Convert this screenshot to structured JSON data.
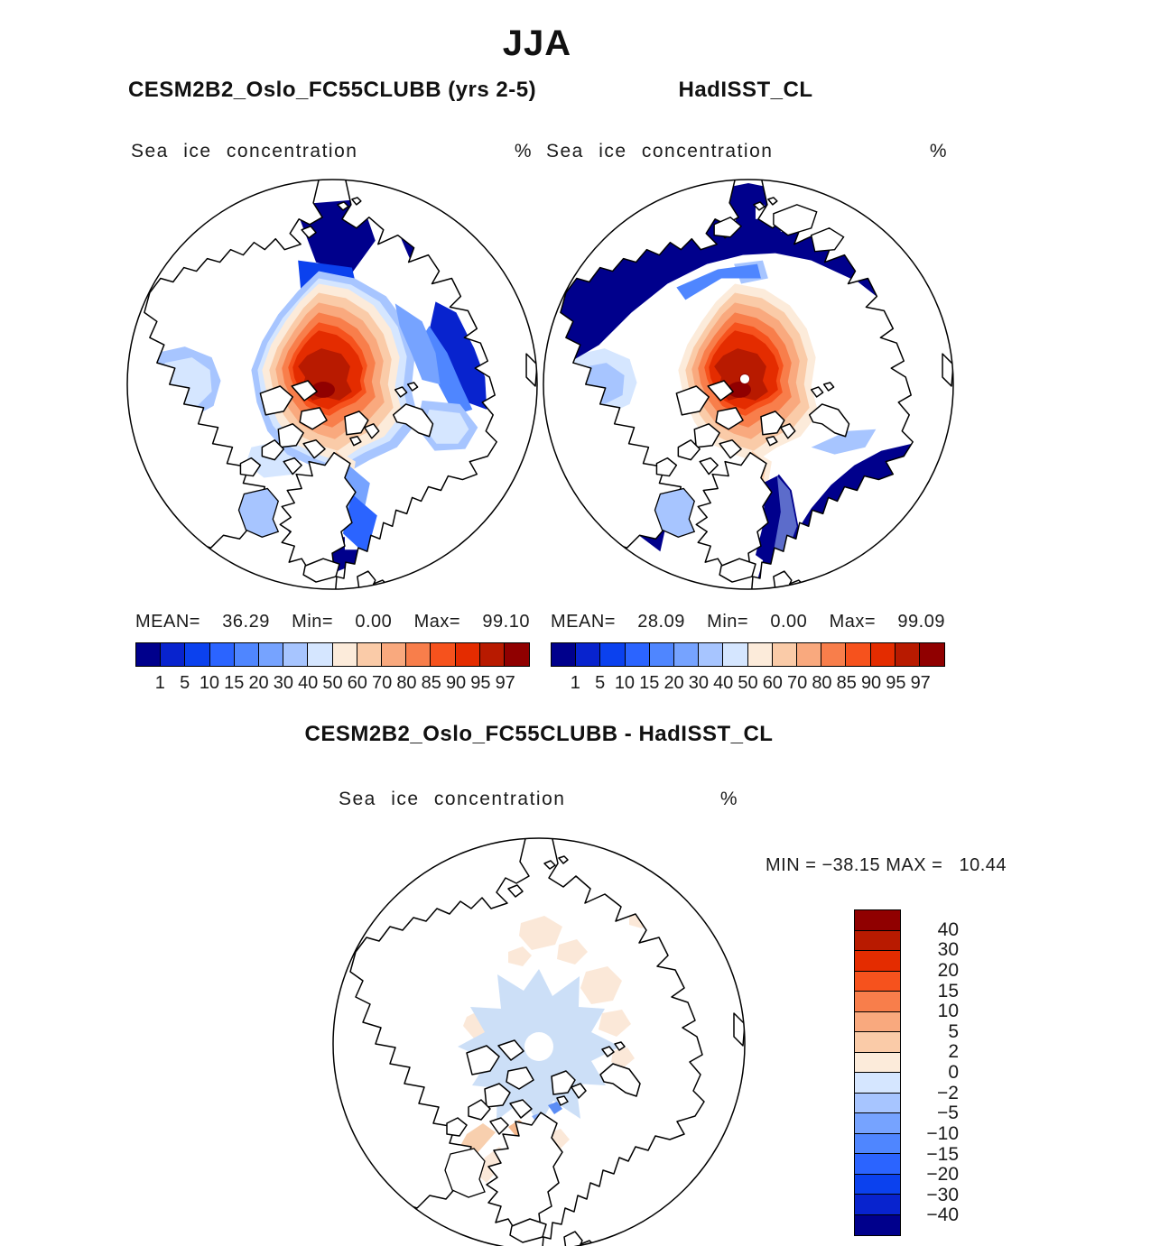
{
  "title": "JJA",
  "panels": {
    "model": {
      "subtitle": "CESM2B2_Oslo_FC55CLUBB (yrs 2-5)",
      "field_label": "Sea ice concentration",
      "units": "%",
      "stats": {
        "mean_label": "MEAN=",
        "mean": "36.29",
        "min_label": "Min=",
        "min": "0.00",
        "max_label": "Max=",
        "max": "99.10"
      }
    },
    "obs": {
      "subtitle": "HadISST_CL",
      "field_label": "Sea ice concentration",
      "units": "%",
      "stats": {
        "mean_label": "MEAN=",
        "mean": "28.09",
        "min_label": "Min=",
        "min": "0.00",
        "max_label": "Max=",
        "max": "99.09"
      }
    },
    "diff": {
      "title": "CESM2B2_Oslo_FC55CLUBB - HadISST_CL",
      "field_label": "Sea ice concentration",
      "units": "%",
      "minmax_line": "MIN = −38.15 MAX =   10.44"
    }
  },
  "colorbar": {
    "tick_labels": [
      "1",
      "5",
      "10",
      "15",
      "20",
      "30",
      "40",
      "50",
      "60",
      "70",
      "80",
      "85",
      "90",
      "95",
      "97"
    ],
    "colors": [
      "#00008C",
      "#0823CE",
      "#0B41EE",
      "#2B64FF",
      "#4F86FF",
      "#76A3FF",
      "#A7C5FF",
      "#D5E6FF",
      "#FCEBDA",
      "#FACBA8",
      "#F9A97E",
      "#F87E4B",
      "#F6521D",
      "#E42C00",
      "#B81A00",
      "#900000"
    ]
  },
  "diff_colorbar": {
    "labels": [
      "40",
      "30",
      "20",
      "15",
      "10",
      "5",
      "2",
      "0",
      "−2",
      "−5",
      "−10",
      "−15",
      "−20",
      "−30",
      "−40"
    ],
    "colors": [
      "#900000",
      "#B81A00",
      "#E42C00",
      "#F6521D",
      "#F87E4B",
      "#F9A97E",
      "#FACBA8",
      "#FCEBDA",
      "#D5E6FF",
      "#A7C5FF",
      "#76A3FF",
      "#4F86FF",
      "#2B64FF",
      "#0B41EE",
      "#0823CE",
      "#00008C"
    ]
  },
  "chart_data": [
    {
      "type": "heatmap",
      "title": "CESM2B2_Oslo_FC55CLUBB (yrs 2-5)",
      "season": "JJA",
      "variable": "Sea ice concentration",
      "units": "%",
      "projection": "north polar stereographic",
      "stats": {
        "mean": 36.29,
        "min": 0.0,
        "max": 99.1
      },
      "contour_levels": [
        1,
        5,
        10,
        15,
        20,
        30,
        40,
        50,
        60,
        70,
        80,
        85,
        90,
        95,
        97
      ],
      "palette": [
        "#00008C",
        "#0823CE",
        "#0B41EE",
        "#2B64FF",
        "#4F86FF",
        "#76A3FF",
        "#A7C5FF",
        "#D5E6FF",
        "#FCEBDA",
        "#FACBA8",
        "#F9A97E",
        "#F87E4B",
        "#F6521D",
        "#E42C00",
        "#B81A00",
        "#900000"
      ],
      "legend_position": "bottom"
    },
    {
      "type": "heatmap",
      "title": "HadISST_CL",
      "season": "JJA",
      "variable": "Sea ice concentration",
      "units": "%",
      "projection": "north polar stereographic",
      "stats": {
        "mean": 28.09,
        "min": 0.0,
        "max": 99.09
      },
      "contour_levels": [
        1,
        5,
        10,
        15,
        20,
        30,
        40,
        50,
        60,
        70,
        80,
        85,
        90,
        95,
        97
      ],
      "palette": [
        "#00008C",
        "#0823CE",
        "#0B41EE",
        "#2B64FF",
        "#4F86FF",
        "#76A3FF",
        "#A7C5FF",
        "#D5E6FF",
        "#FCEBDA",
        "#FACBA8",
        "#F9A97E",
        "#F87E4B",
        "#F6521D",
        "#E42C00",
        "#B81A00",
        "#900000"
      ],
      "legend_position": "bottom"
    },
    {
      "type": "heatmap",
      "title": "CESM2B2_Oslo_FC55CLUBB - HadISST_CL",
      "season": "JJA",
      "variable": "Sea ice concentration difference",
      "units": "%",
      "projection": "north polar stereographic",
      "stats": {
        "min": -38.15,
        "max": 10.44
      },
      "contour_levels": [
        -40,
        -30,
        -20,
        -15,
        -10,
        -5,
        -2,
        0,
        2,
        5,
        10,
        15,
        20,
        30,
        40
      ],
      "palette": [
        "#00008C",
        "#0823CE",
        "#0B41EE",
        "#2B64FF",
        "#4F86FF",
        "#76A3FF",
        "#A7C5FF",
        "#D5E6FF",
        "#FCEBDA",
        "#FACBA8",
        "#F9A97E",
        "#F87E4B",
        "#F6521D",
        "#E42C00",
        "#B81A00",
        "#900000"
      ],
      "legend_position": "right"
    }
  ]
}
